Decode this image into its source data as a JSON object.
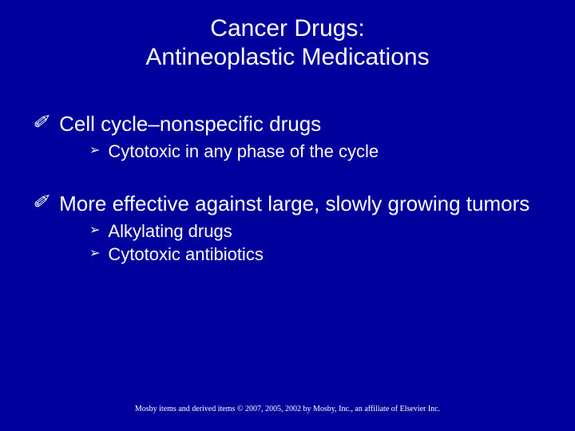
{
  "slide": {
    "background_color": "#00009c",
    "text_color": "#ffffff",
    "title_line1": "Cancer Drugs:",
    "title_line2": "Antineoplastic Medications",
    "title_fontsize": 30,
    "body_fontsize": 26,
    "sub_fontsize": 22,
    "footer_fontsize": 10,
    "top_bullet_glyph": "✐",
    "sub_bullet_glyph": "➢",
    "points": [
      {
        "text": "Cell cycle–nonspecific drugs",
        "subs": [
          "Cytotoxic in any phase of the cycle"
        ]
      },
      {
        "text": "More effective against large, slowly growing tumors",
        "subs": [
          "Alkylating drugs",
          "Cytotoxic antibiotics"
        ]
      }
    ],
    "footer": "Mosby items and derived items © 2007, 2005, 2002 by Mosby, Inc., an affiliate of Elsevier Inc."
  }
}
